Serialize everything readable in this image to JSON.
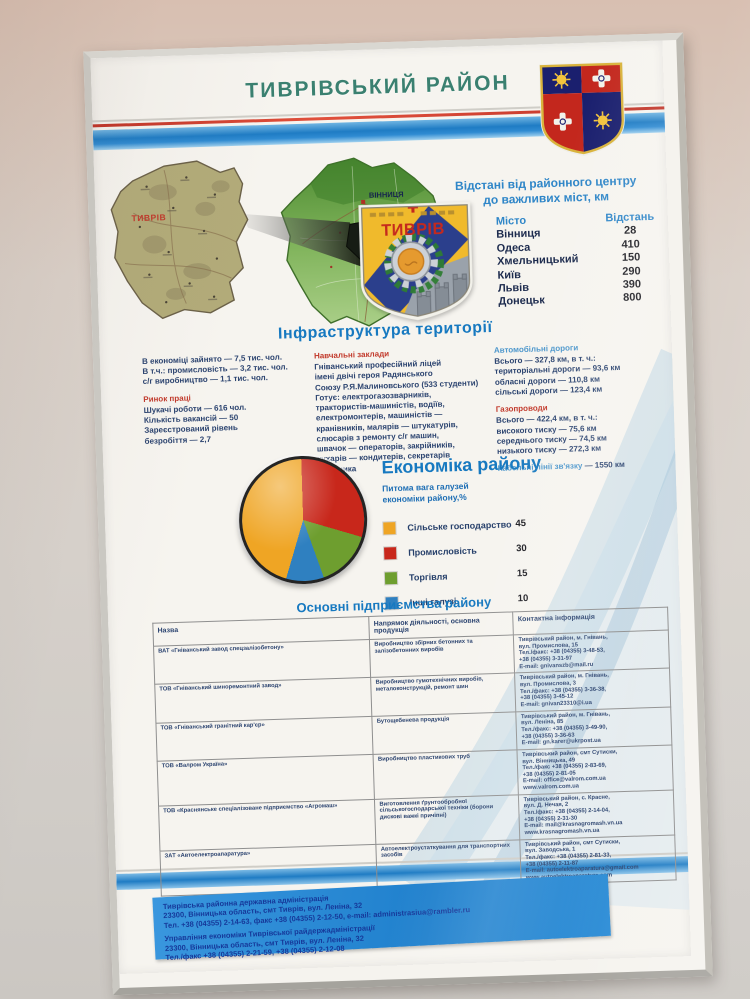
{
  "poster_title": "ТИВРІВСЬКИЙ РАЙОН",
  "distances": {
    "title_lines": [
      "Відстані від районного центру",
      "до важливих міст, км"
    ],
    "col_city": "Місто",
    "col_distance": "Відстань",
    "rows": [
      {
        "city": "Вінниця",
        "km": "28"
      },
      {
        "city": "Одеса",
        "km": "410"
      },
      {
        "city": "Хмельницький",
        "km": "150"
      },
      {
        "city": "Київ",
        "km": "290"
      },
      {
        "city": "Львів",
        "km": "390"
      },
      {
        "city": "Донецьк",
        "km": "800"
      }
    ]
  },
  "maps": {
    "district_label": "ТИВРІВ",
    "oblast_city_label": "ВІННИЦЯ",
    "town_arms_text": "ТИВРІВ"
  },
  "infrastructure": {
    "heading": "Інфраструктура території",
    "employment_lines": [
      "В економіці зайнято — 7,5 тис. чол.",
      "В т.ч.: промисловість — 3,2 тис. чол.",
      "с/г виробництво — 1,1 тис. чол."
    ],
    "labor_heading": "Ринок праці",
    "labor_lines": [
      "Шукачі роботи — 616 чол.",
      "Кількість вакансій — 50",
      "Зареєстрований рівень",
      "безробіття — 2,7"
    ],
    "education_heading": "Навчальні заклади",
    "education_school_lines": [
      "Гніванський професійний ліцей",
      "імені двічі героя Радянського",
      "Союзу Р.Я.Малиновського (533 студенти)"
    ],
    "education_trains_lines": [
      "Готує: електрогазозварників,",
      "трактористів-машиністів, водіїв,",
      "електромонтерів, машиністів —",
      "кранівників, малярів — штукатурів,",
      "слюсарів з ремонту с/г машин,",
      "швачок — операторів, закрійників,",
      "кухарів — кондитерів, секретарів",
      "керівника"
    ],
    "roads_heading": "Автомобільні дороги",
    "roads_lines": [
      "Всього — 327,8 км, в т. ч.:",
      "територіальні дороги — 93,6 км",
      "обласні дороги — 110,8 км",
      "сільські дороги — 123,4 км"
    ],
    "gas_heading": "Газопроводи",
    "gas_lines": [
      "Всього — 422,4 км, в т. ч.:",
      "високого тиску — 75,6 км",
      "середнього тиску — 74,5 км",
      "низького тиску — 272,3 км"
    ],
    "cable_label": "Кабельні лінії зв'язку",
    "cable_value": "— 1550 км"
  },
  "economy": {
    "heading": "Економіка району",
    "subtitle_lines": [
      "Питома вага галузей",
      "економіки району,%"
    ]
  },
  "chart_data": {
    "type": "pie",
    "title": "Економіка району",
    "subtitle": "Питома вага галузей економіки району, %",
    "labels": [
      "Сільське господарство",
      "Промисловість",
      "Торгівля",
      "Інші галузі"
    ],
    "values": [
      45,
      30,
      15,
      10
    ],
    "colors": [
      "#EFA524",
      "#C8271B",
      "#6E9E2F",
      "#2F80C0"
    ],
    "order_clockwise_from_top": [
      "Промисловість",
      "Торгівля",
      "Інші галузі",
      "Сільське господарство"
    ],
    "legend_position": "right"
  },
  "enterprises": {
    "heading": "Основні підприємства району",
    "columns": [
      "Назва",
      "Напрямок діяльності, основна продукція",
      "Контактна інформація"
    ],
    "rows": [
      {
        "name": "ВАТ «Гніванський завод спецзалізобетону»",
        "activity": "Виробництво збірних бетонних та залізобетонних виробів",
        "contact_lines": [
          "Тиврівський район, м. Гнівань,",
          "вул. Промислова, 15",
          "Тел./факс: +38 (04355) 3-48-53,",
          "+38 (04355) 3-31-97",
          "E-mail: gnivanszb@mail.ru"
        ]
      },
      {
        "name": "ТОВ «Гніванський шиноремонтний завод»",
        "activity": "Виробництво гумотехнічних виробів, металоконструкцій, ремонт шин",
        "contact_lines": [
          "Тиврівський район, м. Гнівань,",
          "вул. Промислова, 3",
          "Тел./факс: +38 (04355) 3-36-38,",
          "+38 (04355) 3-45-12",
          "E-mail: gnivan23310@i.ua"
        ]
      },
      {
        "name": "ТОВ «Гніванський гранітний кар'єр»",
        "activity": "Бутощебенева продукція",
        "contact_lines": [
          "Тиврівський район, м. Гнівань,",
          "вул. Леніна, 85",
          "Тел./факс: +38 (04355) 3-49-90,",
          "+38 (04355) 3-36-63",
          "E-mail: gn.karer@ukrpost.ua"
        ]
      },
      {
        "name": "ТОВ «Валром Україна»",
        "activity": "Виробництво пластикових труб",
        "contact_lines": [
          "Тиврівський район, смт Сутиски,",
          "вул. Вінницька, 49",
          "Тел./факс +38 (04355) 2-83-69,",
          "+38 (04355) 2-81-05",
          "E-mail: office@valrom.com.ua",
          "www.valrom.com.ua"
        ]
      },
      {
        "name": "ТОВ «Краснянське спеціалізоване підприємство «Агромаш»",
        "activity": "Виготовлення ґрунтообробної сільськогосподарської техніки (борони дискові важкі причіпні)",
        "contact_lines": [
          "Тиврівський район, с. Красне,",
          "вул. Д. Нечая, 2",
          "Тел./факс: +38 (04355) 2-14-04,",
          "+38 (04355) 2-31-30",
          "E-mail: mail@krasnagromash.vn.ua",
          "www.krasnagromash.vn.ua"
        ]
      },
      {
        "name": "ЗАТ «Автоелектроапаратура»",
        "activity": "Автоелектроустаткування для транспортних засобів",
        "contact_lines": [
          "Тиврівський район, смт Сутиски,",
          "вул. Заводська, 1",
          "Тел./факс: +38 (04355) 2-81-33,",
          "+38 (04355) 2-11-87",
          "E-mail: autoelektroaparatura@gmail.com",
          "www.autoelektroaparatura.com"
        ]
      }
    ]
  },
  "footer": {
    "block1_lines": [
      "Тиврівська районна державна адміністрація",
      "23300, Вінницька область, смт Тиврів, вул. Леніна, 32",
      "Тел. +38 (04355) 2-14-63, факс +38 (04355) 2-12-50, e-mail: administrasiua@rambler.ru"
    ],
    "block2_lines": [
      "Управління економіки Тиврівської райдержадміністрації",
      "23300, Вінницька область, смт Тиврів, вул. Леніна, 32",
      "Тел./факс +38 (04355) 2-21-59, +38 (04355) 2-12-08"
    ]
  },
  "colors": {
    "title_teal": "#3a8070",
    "heading_blue": "#1779c0",
    "heading_red": "#c23a2c",
    "heading_lightblue": "#4d97cc",
    "body_navy": "#2c4470",
    "band_blue": "#1f7cc4",
    "band_red": "#d0392b",
    "footer_bg": "#2189d4",
    "footer_text": "#16399a"
  }
}
